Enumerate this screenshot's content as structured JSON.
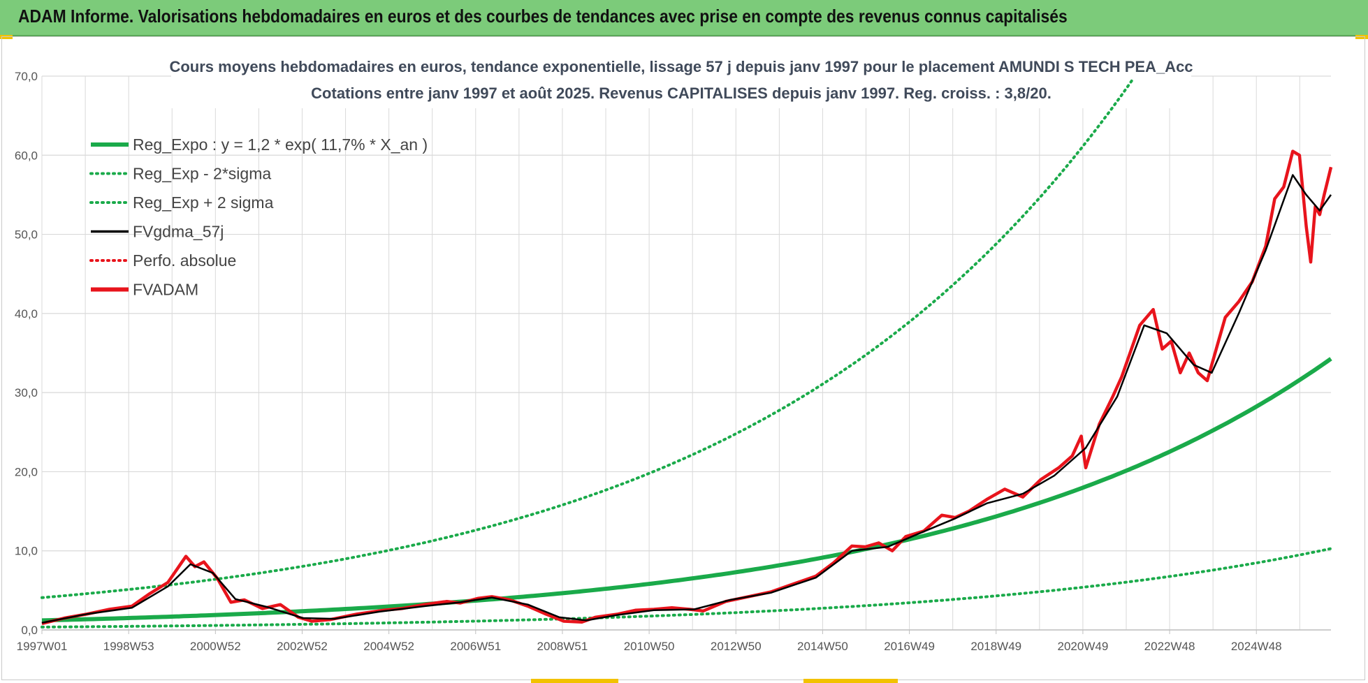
{
  "banner": {
    "title": "ADAM Informe. Valorisations hebdomadaires en euros et des courbes de tendances avec prise en compte des revenus connus capitalisés"
  },
  "colors": {
    "banner_bg": "#7ccb7a",
    "reg_expo": "#1aaa4a",
    "reg_band": "#1aaa4a",
    "gdma": "#000000",
    "fvadam": "#e8141c",
    "perfo": "#e8141c",
    "grid": "#d9d9d9"
  },
  "chart_data": {
    "type": "line",
    "title": "Cours moyens hebdomadaires en euros, tendance exponentielle, lissage 57 j depuis janv 1997  pour le placement AMUNDI S TECH PEA_Acc",
    "subtitle": "Cotations entre janv 1997 et août 2025. Revenus CAPITALISES depuis janv 1997. Reg. croiss. : 3,8/20.",
    "xlabel": "",
    "ylabel": "",
    "ylim": [
      0,
      70
    ],
    "y_ticks": [
      "0,0",
      "10,0",
      "20,0",
      "30,0",
      "40,0",
      "50,0",
      "60,0",
      "70,0"
    ],
    "x_ticks": [
      "1997W01",
      "1998W53",
      "2000W52",
      "2002W52",
      "2004W52",
      "2006W51",
      "2008W51",
      "2010W50",
      "2012W50",
      "2014W50",
      "2016W49",
      "2018W49",
      "2020W49",
      "2022W48",
      "2024W48"
    ],
    "x_range_years": [
      1997.0,
      2025.65
    ],
    "grid": true,
    "legend_position": "top-left",
    "legend": [
      {
        "name": "Reg_Expo : y = 1,2 * exp( 11,7% *  X_an )",
        "style": "solid-thick",
        "color": "#1aaa4a"
      },
      {
        "name": "Reg_Exp - 2*sigma",
        "style": "dotted",
        "color": "#1aaa4a"
      },
      {
        "name": "Reg_Exp + 2 sigma",
        "style": "dotted",
        "color": "#1aaa4a"
      },
      {
        "name": "FVgdma_57j",
        "style": "solid",
        "color": "#000000"
      },
      {
        "name": "Perfo. absolue",
        "style": "dotted",
        "color": "#e8141c"
      },
      {
        "name": "FVADAM",
        "style": "solid-thick",
        "color": "#e8141c"
      }
    ],
    "regression": {
      "a": 1.2,
      "rate": 0.117,
      "lower_factor": 0.3,
      "upper_factor": 3.4
    },
    "series": [
      {
        "name": "FVADAM",
        "x": [
          1997.0,
          1997.5,
          1998.0,
          1998.5,
          1999.0,
          1999.4,
          1999.8,
          2000.2,
          2000.4,
          2000.6,
          2000.9,
          2001.2,
          2001.5,
          2001.9,
          2002.3,
          2002.7,
          2003.0,
          2003.4,
          2004.0,
          2004.6,
          2005.0,
          2005.5,
          2006.0,
          2006.3,
          2006.7,
          2007.0,
          2007.4,
          2007.8,
          2008.2,
          2008.6,
          2009.0,
          2009.3,
          2009.8,
          2010.2,
          2010.6,
          2011.0,
          2011.4,
          2011.7,
          2012.2,
          2012.7,
          2013.2,
          2013.7,
          2014.2,
          2014.6,
          2015.0,
          2015.3,
          2015.6,
          2015.9,
          2016.2,
          2016.6,
          2017.0,
          2017.3,
          2017.6,
          2018.0,
          2018.4,
          2018.8,
          2019.2,
          2019.6,
          2019.9,
          2020.1,
          2020.2,
          2020.5,
          2020.8,
          2021.0,
          2021.4,
          2021.7,
          2021.9,
          2022.1,
          2022.3,
          2022.5,
          2022.7,
          2022.9,
          2023.1,
          2023.3,
          2023.6,
          2023.9,
          2024.2,
          2024.4,
          2024.6,
          2024.8,
          2024.95,
          2025.1,
          2025.2,
          2025.3,
          2025.4,
          2025.5,
          2025.65
        ],
        "values": [
          0.8,
          1.5,
          2.0,
          2.6,
          3.0,
          4.6,
          6.0,
          9.3,
          8.0,
          8.6,
          6.5,
          3.5,
          3.8,
          2.7,
          3.2,
          1.6,
          1.1,
          1.3,
          2.0,
          2.5,
          2.7,
          3.2,
          3.6,
          3.4,
          4.0,
          4.2,
          3.8,
          3.0,
          2.0,
          1.1,
          1.0,
          1.6,
          2.0,
          2.5,
          2.6,
          2.8,
          2.6,
          2.4,
          3.6,
          4.2,
          4.8,
          5.8,
          6.8,
          8.5,
          10.6,
          10.5,
          11.0,
          10.0,
          11.8,
          12.5,
          14.5,
          14.2,
          15.0,
          16.5,
          17.8,
          16.8,
          19.0,
          20.5,
          22.0,
          24.5,
          20.5,
          26.0,
          29.5,
          32.0,
          38.5,
          40.5,
          35.5,
          36.5,
          32.5,
          35.0,
          32.5,
          31.5,
          35.5,
          39.5,
          41.5,
          44.0,
          48.5,
          54.5,
          56.0,
          60.5,
          60.0,
          51.0,
          46.5,
          53.5,
          52.5,
          55.0,
          58.5
        ]
      },
      {
        "name": "FVgdma_57j",
        "x": [
          1997.0,
          1998.0,
          1999.0,
          1999.8,
          2000.3,
          2000.8,
          2001.3,
          2002.0,
          2002.8,
          2003.5,
          2004.5,
          2005.5,
          2006.3,
          2007.0,
          2007.8,
          2008.5,
          2009.1,
          2009.8,
          2010.6,
          2011.5,
          2012.3,
          2013.2,
          2014.2,
          2015.0,
          2015.8,
          2016.5,
          2017.3,
          2018.0,
          2018.8,
          2019.5,
          2020.2,
          2020.9,
          2021.5,
          2022.0,
          2022.6,
          2023.0,
          2023.6,
          2024.2,
          2024.8,
          2025.1,
          2025.4,
          2025.65
        ],
        "values": [
          0.9,
          2.0,
          2.8,
          5.5,
          8.3,
          7.2,
          3.9,
          2.9,
          1.5,
          1.4,
          2.3,
          3.0,
          3.5,
          4.1,
          3.2,
          1.6,
          1.2,
          1.9,
          2.5,
          2.6,
          3.8,
          4.7,
          6.6,
          10.0,
          10.5,
          12.2,
          14.1,
          16.0,
          17.2,
          19.5,
          23.0,
          29.5,
          38.5,
          37.5,
          33.5,
          32.5,
          40.0,
          48.0,
          57.5,
          55.0,
          53.0,
          55.0
        ]
      }
    ]
  }
}
